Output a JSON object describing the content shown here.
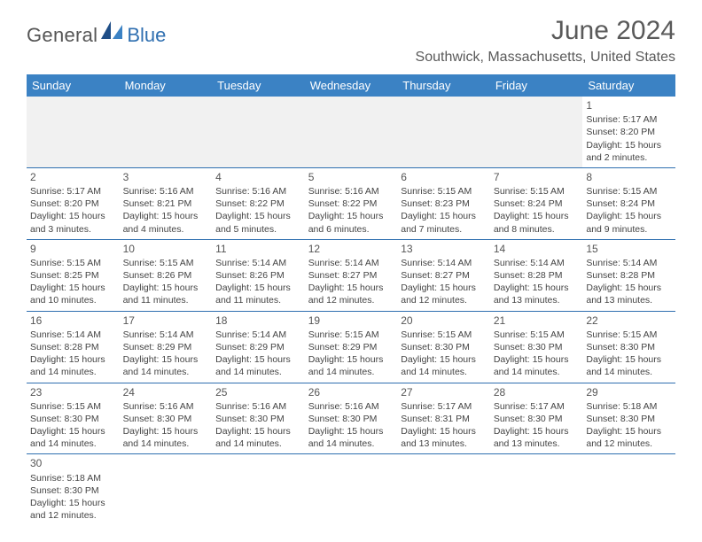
{
  "brand": {
    "word1": "General",
    "word2": "Blue"
  },
  "colors": {
    "header_bg": "#3b82c4",
    "header_text": "#ffffff",
    "rule": "#2f6fb0",
    "brand_gray": "#555555",
    "brand_blue": "#2f6fb0",
    "body_text": "#444444",
    "title_text": "#5a5a5a",
    "first_row_fill": "#f1f1f1",
    "page_bg": "#ffffff"
  },
  "typography": {
    "title_fontsize_pt": 22,
    "location_fontsize_pt": 12,
    "header_fontsize_pt": 10,
    "cell_fontsize_pt": 8,
    "daynum_fontsize_pt": 9
  },
  "title": "June 2024",
  "location": "Southwick, Massachusetts, United States",
  "weekday_headers": [
    "Sunday",
    "Monday",
    "Tuesday",
    "Wednesday",
    "Thursday",
    "Friday",
    "Saturday"
  ],
  "layout": {
    "columns": 7,
    "rows": 6,
    "start_weekday_index": 6
  },
  "days": [
    {
      "n": 1,
      "sunrise": "5:17 AM",
      "sunset": "8:20 PM",
      "daylight": "15 hours and 2 minutes."
    },
    {
      "n": 2,
      "sunrise": "5:17 AM",
      "sunset": "8:20 PM",
      "daylight": "15 hours and 3 minutes."
    },
    {
      "n": 3,
      "sunrise": "5:16 AM",
      "sunset": "8:21 PM",
      "daylight": "15 hours and 4 minutes."
    },
    {
      "n": 4,
      "sunrise": "5:16 AM",
      "sunset": "8:22 PM",
      "daylight": "15 hours and 5 minutes."
    },
    {
      "n": 5,
      "sunrise": "5:16 AM",
      "sunset": "8:22 PM",
      "daylight": "15 hours and 6 minutes."
    },
    {
      "n": 6,
      "sunrise": "5:15 AM",
      "sunset": "8:23 PM",
      "daylight": "15 hours and 7 minutes."
    },
    {
      "n": 7,
      "sunrise": "5:15 AM",
      "sunset": "8:24 PM",
      "daylight": "15 hours and 8 minutes."
    },
    {
      "n": 8,
      "sunrise": "5:15 AM",
      "sunset": "8:24 PM",
      "daylight": "15 hours and 9 minutes."
    },
    {
      "n": 9,
      "sunrise": "5:15 AM",
      "sunset": "8:25 PM",
      "daylight": "15 hours and 10 minutes."
    },
    {
      "n": 10,
      "sunrise": "5:15 AM",
      "sunset": "8:26 PM",
      "daylight": "15 hours and 11 minutes."
    },
    {
      "n": 11,
      "sunrise": "5:14 AM",
      "sunset": "8:26 PM",
      "daylight": "15 hours and 11 minutes."
    },
    {
      "n": 12,
      "sunrise": "5:14 AM",
      "sunset": "8:27 PM",
      "daylight": "15 hours and 12 minutes."
    },
    {
      "n": 13,
      "sunrise": "5:14 AM",
      "sunset": "8:27 PM",
      "daylight": "15 hours and 12 minutes."
    },
    {
      "n": 14,
      "sunrise": "5:14 AM",
      "sunset": "8:28 PM",
      "daylight": "15 hours and 13 minutes."
    },
    {
      "n": 15,
      "sunrise": "5:14 AM",
      "sunset": "8:28 PM",
      "daylight": "15 hours and 13 minutes."
    },
    {
      "n": 16,
      "sunrise": "5:14 AM",
      "sunset": "8:28 PM",
      "daylight": "15 hours and 14 minutes."
    },
    {
      "n": 17,
      "sunrise": "5:14 AM",
      "sunset": "8:29 PM",
      "daylight": "15 hours and 14 minutes."
    },
    {
      "n": 18,
      "sunrise": "5:14 AM",
      "sunset": "8:29 PM",
      "daylight": "15 hours and 14 minutes."
    },
    {
      "n": 19,
      "sunrise": "5:15 AM",
      "sunset": "8:29 PM",
      "daylight": "15 hours and 14 minutes."
    },
    {
      "n": 20,
      "sunrise": "5:15 AM",
      "sunset": "8:30 PM",
      "daylight": "15 hours and 14 minutes."
    },
    {
      "n": 21,
      "sunrise": "5:15 AM",
      "sunset": "8:30 PM",
      "daylight": "15 hours and 14 minutes."
    },
    {
      "n": 22,
      "sunrise": "5:15 AM",
      "sunset": "8:30 PM",
      "daylight": "15 hours and 14 minutes."
    },
    {
      "n": 23,
      "sunrise": "5:15 AM",
      "sunset": "8:30 PM",
      "daylight": "15 hours and 14 minutes."
    },
    {
      "n": 24,
      "sunrise": "5:16 AM",
      "sunset": "8:30 PM",
      "daylight": "15 hours and 14 minutes."
    },
    {
      "n": 25,
      "sunrise": "5:16 AM",
      "sunset": "8:30 PM",
      "daylight": "15 hours and 14 minutes."
    },
    {
      "n": 26,
      "sunrise": "5:16 AM",
      "sunset": "8:30 PM",
      "daylight": "15 hours and 14 minutes."
    },
    {
      "n": 27,
      "sunrise": "5:17 AM",
      "sunset": "8:31 PM",
      "daylight": "15 hours and 13 minutes."
    },
    {
      "n": 28,
      "sunrise": "5:17 AM",
      "sunset": "8:30 PM",
      "daylight": "15 hours and 13 minutes."
    },
    {
      "n": 29,
      "sunrise": "5:18 AM",
      "sunset": "8:30 PM",
      "daylight": "15 hours and 12 minutes."
    },
    {
      "n": 30,
      "sunrise": "5:18 AM",
      "sunset": "8:30 PM",
      "daylight": "15 hours and 12 minutes."
    }
  ],
  "labels": {
    "sunrise_prefix": "Sunrise: ",
    "sunset_prefix": "Sunset: ",
    "daylight_prefix": "Daylight: "
  }
}
